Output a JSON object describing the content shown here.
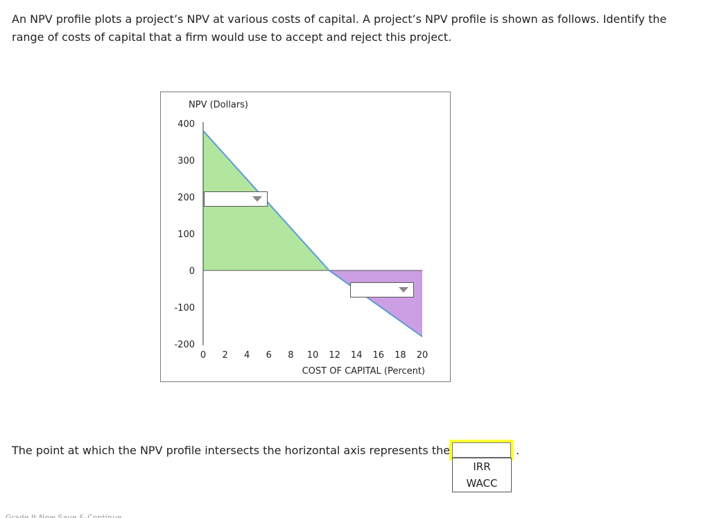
{
  "question": {
    "text": "An NPV profile plots a project’s NPV at various costs of capital. A project’s NPV profile is shown as follows. Identify the range of costs of capital that a firm would use to accept and reject this project."
  },
  "chart_data": {
    "type": "area",
    "ylabel": "NPV (Dollars)",
    "xlabel": "COST OF CAPITAL (Percent)",
    "x_ticks": [
      0,
      2,
      4,
      6,
      8,
      10,
      12,
      14,
      16,
      18,
      20
    ],
    "y_ticks": [
      400,
      300,
      200,
      100,
      0,
      -100,
      -200
    ],
    "xlim": [
      0,
      20
    ],
    "ylim": [
      -200,
      400
    ],
    "grid": false,
    "series": [
      {
        "x": [
          0,
          11.5,
          20
        ],
        "y": [
          380,
          0,
          -180
        ]
      }
    ],
    "regions": [
      {
        "color": "#b2e59e",
        "polygon": [
          [
            0,
            380
          ],
          [
            11.5,
            0
          ],
          [
            0,
            0
          ]
        ]
      },
      {
        "color": "#cc9fe5",
        "polygon": [
          [
            11.5,
            0
          ],
          [
            20,
            0
          ],
          [
            20,
            -180
          ]
        ]
      }
    ],
    "line_color": "#5b9bd5",
    "accept_dropdown_value": "",
    "reject_dropdown_value": ""
  },
  "statement": {
    "text": "The point at which the NPV profile intersects the horizontal axis represents the",
    "period": ".",
    "answer_value": "",
    "options": [
      "IRR",
      "WACC"
    ]
  },
  "footer": {
    "text": "Grade It Now   Save & Continue"
  }
}
